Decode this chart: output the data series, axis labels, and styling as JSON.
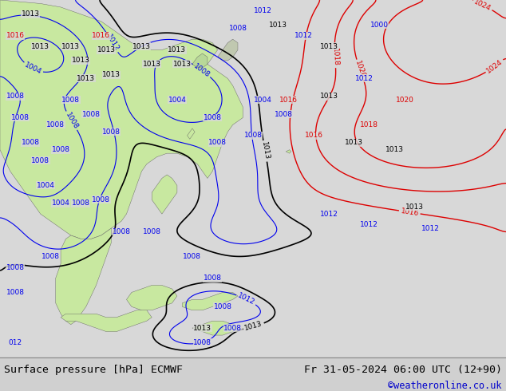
{
  "title_left": "Surface pressure [hPa] ECMWF",
  "title_right": "Fr 31-05-2024 06:00 UTC (12+90)",
  "credit": "©weatheronline.co.uk",
  "ocean_color": "#d8d8d8",
  "land_color": "#c8e8a0",
  "land_edge_color": "#606060",
  "footer_bg": "#d0d0d0",
  "footer_text_color": "#000000",
  "credit_color": "#0000cc",
  "contour_blue": "#0000ee",
  "contour_black": "#000000",
  "contour_red": "#dd0000",
  "figsize": [
    6.34,
    4.9
  ],
  "dpi": 100,
  "base_pressure": 1013.0
}
